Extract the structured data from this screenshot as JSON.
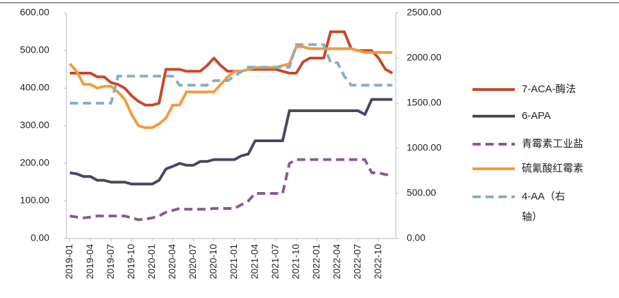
{
  "chart_data": {
    "type": "line",
    "categories": [
      "2019-01",
      null,
      null,
      "2019-04",
      null,
      null,
      "2019-07",
      null,
      null,
      "2019-10",
      null,
      null,
      "2020-01",
      null,
      null,
      "2020-04",
      null,
      null,
      "2020-07",
      null,
      null,
      "2020-10",
      null,
      null,
      "2021-01",
      null,
      null,
      "2021-04",
      null,
      null,
      "2021-07",
      null,
      null,
      "2021-10",
      null,
      null,
      "2022-01",
      null,
      null,
      "2022-04",
      null,
      null,
      "2022-07",
      null,
      null,
      "2022-10",
      null,
      null
    ],
    "series": [
      {
        "name": "7-ACA-酶法",
        "color": "#c8472a",
        "dash": false,
        "values": [
          440,
          440,
          440,
          440,
          430,
          430,
          415,
          410,
          400,
          380,
          365,
          355,
          355,
          360,
          450,
          450,
          450,
          445,
          445,
          445,
          460,
          480,
          460,
          445,
          445,
          445,
          450,
          450,
          450,
          450,
          450,
          445,
          440,
          440,
          470,
          480,
          480,
          480,
          550,
          550,
          550,
          505,
          500,
          500,
          500,
          480,
          450,
          440
        ]
      },
      {
        "name": "6-APA",
        "color": "#4a4760",
        "dash": false,
        "values": [
          175,
          172,
          165,
          165,
          155,
          155,
          150,
          150,
          150,
          145,
          145,
          145,
          145,
          155,
          185,
          192,
          200,
          195,
          195,
          205,
          205,
          210,
          210,
          210,
          210,
          220,
          225,
          260,
          260,
          260,
          260,
          260,
          340,
          340,
          340,
          340,
          340,
          340,
          340,
          340,
          340,
          340,
          340,
          330,
          370,
          370,
          370,
          370
        ]
      },
      {
        "name": "青霉素工业盐",
        "color": "#8b5a8e",
        "dash": true,
        "values": [
          60,
          57,
          55,
          57,
          60,
          60,
          60,
          60,
          60,
          55,
          50,
          52,
          55,
          60,
          70,
          75,
          80,
          78,
          78,
          78,
          78,
          80,
          80,
          80,
          80,
          90,
          100,
          120,
          120,
          120,
          120,
          120,
          200,
          210,
          210,
          210,
          210,
          210,
          210,
          210,
          210,
          210,
          210,
          210,
          175,
          175,
          170,
          170
        ]
      },
      {
        "name": "硫氰酸红霉素",
        "color": "#f39a3c",
        "dash": false,
        "values": [
          465,
          445,
          410,
          410,
          400,
          405,
          405,
          390,
          370,
          330,
          300,
          295,
          295,
          305,
          320,
          355,
          355,
          390,
          390,
          390,
          390,
          390,
          410,
          430,
          445,
          445,
          450,
          455,
          455,
          455,
          455,
          460,
          465,
          510,
          510,
          505,
          505,
          505,
          505,
          505,
          505,
          505,
          500,
          495,
          495,
          495,
          495,
          495
        ]
      },
      {
        "name": "4-AA（右轴）",
        "color": "#87aec4",
        "dash": true,
        "axis": "y2",
        "values": [
          1500,
          1500,
          1500,
          1500,
          1500,
          1500,
          1500,
          1800,
          1800,
          1800,
          1800,
          1800,
          1800,
          1800,
          1800,
          1800,
          1700,
          1700,
          1700,
          1700,
          1700,
          1750,
          1750,
          1750,
          1800,
          1850,
          1900,
          1900,
          1900,
          1900,
          1900,
          1900,
          1900,
          2150,
          2150,
          2150,
          2150,
          2150,
          1950,
          1950,
          1800,
          1700,
          1700,
          1700,
          1700,
          1700,
          1700,
          1700
        ]
      }
    ],
    "ylim": [
      0,
      600
    ],
    "yticks": [
      {
        "value": 0,
        "label": "0.00"
      },
      {
        "value": 100,
        "label": "100.00"
      },
      {
        "value": 200,
        "label": "200.00"
      },
      {
        "value": 300,
        "label": "300.00"
      },
      {
        "value": 400,
        "label": "400.00"
      },
      {
        "value": 500,
        "label": "500.00"
      },
      {
        "value": 600,
        "label": "600.00"
      }
    ],
    "y2lim": [
      0,
      2500
    ],
    "y2ticks": [
      {
        "value": 0,
        "label": "0.00"
      },
      {
        "value": 500,
        "label": "500.00"
      },
      {
        "value": 1000,
        "label": "1000.00"
      },
      {
        "value": 1500,
        "label": "1500.00"
      },
      {
        "value": 2000,
        "label": "2000.00"
      },
      {
        "value": 2500,
        "label": "2500.00"
      }
    ]
  }
}
